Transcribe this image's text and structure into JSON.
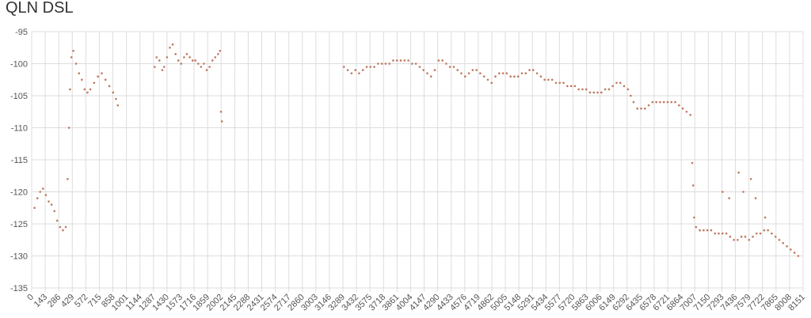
{
  "title": "QLN DSL",
  "chart_data": {
    "type": "scatter",
    "title": "QLN DSL",
    "xlabel": "",
    "ylabel": "",
    "xlim": [
      0,
      8151
    ],
    "ylim": [
      -135,
      -95
    ],
    "grid": true,
    "point_color": "#c0785f",
    "y_ticks": [
      -95,
      -100,
      -105,
      -110,
      -115,
      -120,
      -125,
      -130,
      -135
    ],
    "x_tick_labels": [
      "0",
      "143",
      "286",
      "429",
      "572",
      "715",
      "858",
      "1001",
      "1144",
      "1287",
      "1430",
      "1573",
      "1716",
      "1859",
      "2002",
      "2145",
      "2288",
      "2431",
      "2574",
      "2717",
      "2860",
      "3003",
      "3146",
      "3289",
      "3432",
      "3575",
      "3718",
      "3861",
      "4004",
      "4147",
      "4290",
      "4433",
      "4576",
      "4719",
      "4862",
      "5005",
      "5148",
      "5291",
      "5434",
      "5577",
      "5720",
      "5863",
      "6006",
      "6149",
      "6292",
      "6435",
      "6578",
      "6721",
      "6864",
      "7007",
      "7150",
      "7293",
      "7436",
      "7579",
      "7722",
      "7865",
      "8008",
      "8151"
    ],
    "series": [
      {
        "points": [
          [
            30,
            -122.5
          ],
          [
            60,
            -121
          ],
          [
            90,
            -120
          ],
          [
            120,
            -119.5
          ],
          [
            150,
            -120.5
          ],
          [
            180,
            -121.5
          ],
          [
            210,
            -122
          ],
          [
            240,
            -123
          ],
          [
            270,
            -124.5
          ],
          [
            300,
            -125.5
          ],
          [
            330,
            -126
          ],
          [
            360,
            -125.5
          ],
          [
            380,
            -118
          ],
          [
            395,
            -110
          ],
          [
            405,
            -104
          ],
          [
            420,
            -99
          ],
          [
            440,
            -98
          ],
          [
            470,
            -100
          ],
          [
            500,
            -101.5
          ],
          [
            530,
            -102.5
          ],
          [
            560,
            -104
          ],
          [
            590,
            -104.5
          ],
          [
            620,
            -104
          ],
          [
            660,
            -103
          ],
          [
            700,
            -102
          ],
          [
            740,
            -101.5
          ],
          [
            780,
            -102.5
          ],
          [
            820,
            -103.5
          ],
          [
            860,
            -104.5
          ],
          [
            890,
            -105.5
          ],
          [
            910,
            -106.5
          ],
          [
            1300,
            -100.5
          ],
          [
            1320,
            -99
          ],
          [
            1350,
            -99.5
          ],
          [
            1380,
            -101
          ],
          [
            1400,
            -100.5
          ],
          [
            1430,
            -99
          ],
          [
            1460,
            -97.5
          ],
          [
            1490,
            -97
          ],
          [
            1520,
            -98.5
          ],
          [
            1550,
            -99.5
          ],
          [
            1580,
            -100
          ],
          [
            1610,
            -99
          ],
          [
            1640,
            -98.5
          ],
          [
            1670,
            -99
          ],
          [
            1700,
            -99.5
          ],
          [
            1730,
            -99.5
          ],
          [
            1760,
            -100
          ],
          [
            1790,
            -100.5
          ],
          [
            1820,
            -100
          ],
          [
            1850,
            -101
          ],
          [
            1880,
            -100.5
          ],
          [
            1910,
            -99.5
          ],
          [
            1940,
            -99
          ],
          [
            1970,
            -98.5
          ],
          [
            1990,
            -98
          ],
          [
            2000,
            -107.5
          ],
          [
            2010,
            -109
          ],
          [
            3300,
            -100.5
          ],
          [
            3340,
            -101
          ],
          [
            3380,
            -101.5
          ],
          [
            3420,
            -101
          ],
          [
            3460,
            -101.5
          ],
          [
            3500,
            -101
          ],
          [
            3540,
            -100.5
          ],
          [
            3580,
            -100.5
          ],
          [
            3620,
            -100.5
          ],
          [
            3660,
            -100
          ],
          [
            3700,
            -100
          ],
          [
            3740,
            -100
          ],
          [
            3780,
            -100
          ],
          [
            3820,
            -99.5
          ],
          [
            3860,
            -99.5
          ],
          [
            3900,
            -99.5
          ],
          [
            3940,
            -99.5
          ],
          [
            3980,
            -99.5
          ],
          [
            4020,
            -100
          ],
          [
            4060,
            -100
          ],
          [
            4100,
            -100.5
          ],
          [
            4140,
            -101
          ],
          [
            4180,
            -101.5
          ],
          [
            4220,
            -102
          ],
          [
            4260,
            -101
          ],
          [
            4300,
            -99.5
          ],
          [
            4340,
            -99.5
          ],
          [
            4380,
            -100
          ],
          [
            4420,
            -100.5
          ],
          [
            4460,
            -100.5
          ],
          [
            4500,
            -101
          ],
          [
            4540,
            -101.5
          ],
          [
            4580,
            -102
          ],
          [
            4620,
            -101.5
          ],
          [
            4660,
            -101
          ],
          [
            4700,
            -101
          ],
          [
            4740,
            -101.5
          ],
          [
            4780,
            -102
          ],
          [
            4820,
            -102.5
          ],
          [
            4860,
            -103
          ],
          [
            4900,
            -102
          ],
          [
            4940,
            -101.5
          ],
          [
            4980,
            -101.5
          ],
          [
            5020,
            -101.5
          ],
          [
            5060,
            -102
          ],
          [
            5100,
            -102
          ],
          [
            5140,
            -102
          ],
          [
            5180,
            -101.5
          ],
          [
            5220,
            -101.5
          ],
          [
            5260,
            -101
          ],
          [
            5300,
            -101
          ],
          [
            5340,
            -101.5
          ],
          [
            5380,
            -102
          ],
          [
            5420,
            -102.5
          ],
          [
            5460,
            -102.5
          ],
          [
            5500,
            -102.5
          ],
          [
            5540,
            -103
          ],
          [
            5580,
            -103
          ],
          [
            5620,
            -103
          ],
          [
            5660,
            -103.5
          ],
          [
            5700,
            -103.5
          ],
          [
            5740,
            -103.5
          ],
          [
            5780,
            -104
          ],
          [
            5820,
            -104
          ],
          [
            5860,
            -104
          ],
          [
            5900,
            -104.5
          ],
          [
            5940,
            -104.5
          ],
          [
            5980,
            -104.5
          ],
          [
            6020,
            -104.5
          ],
          [
            6060,
            -104
          ],
          [
            6100,
            -104
          ],
          [
            6140,
            -103.5
          ],
          [
            6180,
            -103
          ],
          [
            6220,
            -103
          ],
          [
            6260,
            -103.5
          ],
          [
            6300,
            -104
          ],
          [
            6330,
            -105
          ],
          [
            6360,
            -106
          ],
          [
            6400,
            -107
          ],
          [
            6440,
            -107
          ],
          [
            6480,
            -107
          ],
          [
            6520,
            -106.5
          ],
          [
            6560,
            -106
          ],
          [
            6600,
            -106
          ],
          [
            6640,
            -106
          ],
          [
            6680,
            -106
          ],
          [
            6720,
            -106
          ],
          [
            6760,
            -106
          ],
          [
            6800,
            -106
          ],
          [
            6840,
            -106.5
          ],
          [
            6880,
            -107
          ],
          [
            6920,
            -107.5
          ],
          [
            6960,
            -108
          ],
          [
            6980,
            -115.5
          ],
          [
            6990,
            -119
          ],
          [
            7000,
            -124
          ],
          [
            7020,
            -125.5
          ],
          [
            7060,
            -126
          ],
          [
            7100,
            -126
          ],
          [
            7140,
            -126
          ],
          [
            7180,
            -126
          ],
          [
            7220,
            -126.5
          ],
          [
            7260,
            -126.5
          ],
          [
            7300,
            -126.5
          ],
          [
            7340,
            -126.5
          ],
          [
            7380,
            -127
          ],
          [
            7420,
            -127.5
          ],
          [
            7460,
            -127.5
          ],
          [
            7500,
            -127
          ],
          [
            7540,
            -127
          ],
          [
            7580,
            -127.5
          ],
          [
            7620,
            -127
          ],
          [
            7660,
            -126.5
          ],
          [
            7700,
            -126.5
          ],
          [
            7740,
            -126
          ],
          [
            7780,
            -126
          ],
          [
            7820,
            -126.5
          ],
          [
            7860,
            -127
          ],
          [
            7900,
            -127.5
          ],
          [
            7940,
            -128
          ],
          [
            7980,
            -128.5
          ],
          [
            8020,
            -129
          ],
          [
            8060,
            -129.5
          ],
          [
            8100,
            -130
          ],
          [
            7300,
            -120
          ],
          [
            7370,
            -121
          ],
          [
            7470,
            -117
          ],
          [
            7520,
            -120
          ],
          [
            7600,
            -118
          ],
          [
            7650,
            -121
          ],
          [
            7750,
            -124
          ]
        ]
      }
    ]
  }
}
